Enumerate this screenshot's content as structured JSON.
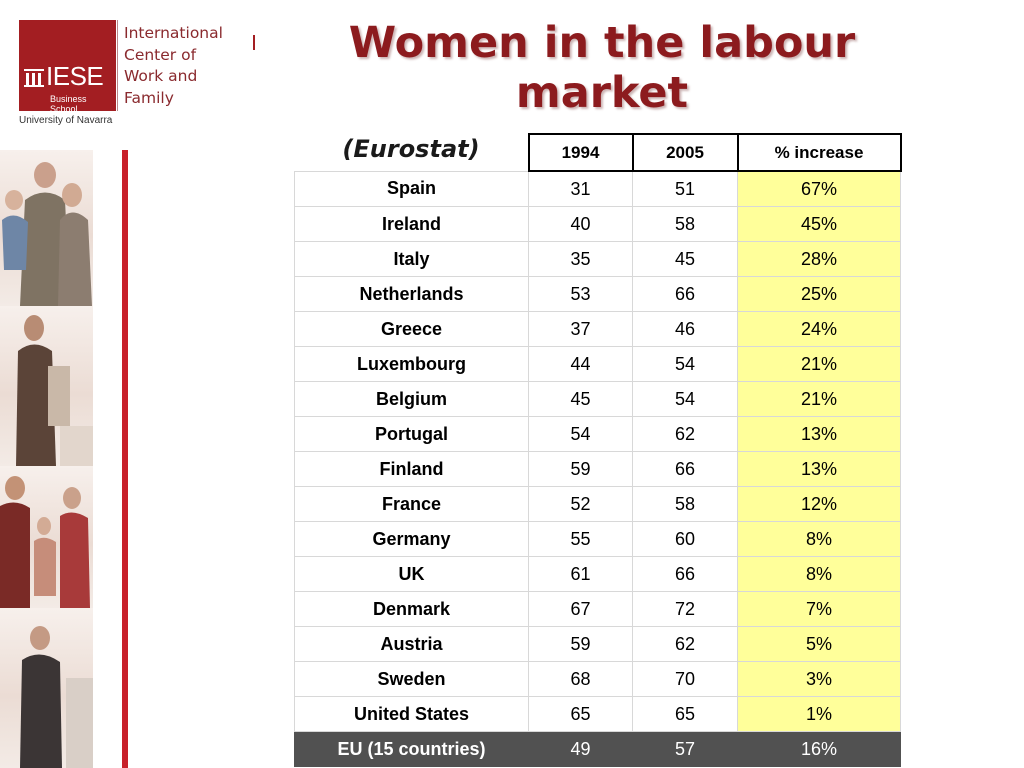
{
  "logo": {
    "wordmark": "IESE",
    "subtitle": "Business School",
    "university": "University of Navarra",
    "center_name": [
      "International",
      "Center of",
      "Work and",
      "Family"
    ],
    "brand_color": "#a31e22"
  },
  "slide": {
    "title": "Women in the labour market",
    "source": "(Eurostat)",
    "title_color": "#8c1b1e",
    "highlight_color": "#ffff9a",
    "total_row_color": "#515151"
  },
  "table": {
    "headers": [
      "1994",
      "2005",
      "% increase"
    ],
    "rows": [
      {
        "country": "Spain",
        "y1994": "31",
        "y2005": "51",
        "increase": "67%"
      },
      {
        "country": "Ireland",
        "y1994": "40",
        "y2005": "58",
        "increase": "45%"
      },
      {
        "country": "Italy",
        "y1994": "35",
        "y2005": "45",
        "increase": "28%"
      },
      {
        "country": "Netherlands",
        "y1994": "53",
        "y2005": "66",
        "increase": "25%"
      },
      {
        "country": "Greece",
        "y1994": "37",
        "y2005": "46",
        "increase": "24%"
      },
      {
        "country": "Luxembourg",
        "y1994": "44",
        "y2005": "54",
        "increase": "21%"
      },
      {
        "country": "Belgium",
        "y1994": "45",
        "y2005": "54",
        "increase": "21%"
      },
      {
        "country": "Portugal",
        "y1994": "54",
        "y2005": "62",
        "increase": "13%"
      },
      {
        "country": "Finland",
        "y1994": "59",
        "y2005": "66",
        "increase": "13%"
      },
      {
        "country": "France",
        "y1994": "52",
        "y2005": "58",
        "increase": "12%"
      },
      {
        "country": "Germany",
        "y1994": "55",
        "y2005": "60",
        "increase": "8%"
      },
      {
        "country": "UK",
        "y1994": "61",
        "y2005": "66",
        "increase": "8%"
      },
      {
        "country": "Denmark",
        "y1994": "67",
        "y2005": "72",
        "increase": "7%"
      },
      {
        "country": "Austria",
        "y1994": "59",
        "y2005": "62",
        "increase": "5%"
      },
      {
        "country": "Sweden",
        "y1994": "68",
        "y2005": "70",
        "increase": "3%"
      },
      {
        "country": "United States",
        "y1994": "65",
        "y2005": "65",
        "increase": "1%"
      }
    ],
    "total": {
      "country": "EU (15 countries)",
      "y1994": "49",
      "y2005": "57",
      "increase": "16%"
    }
  }
}
